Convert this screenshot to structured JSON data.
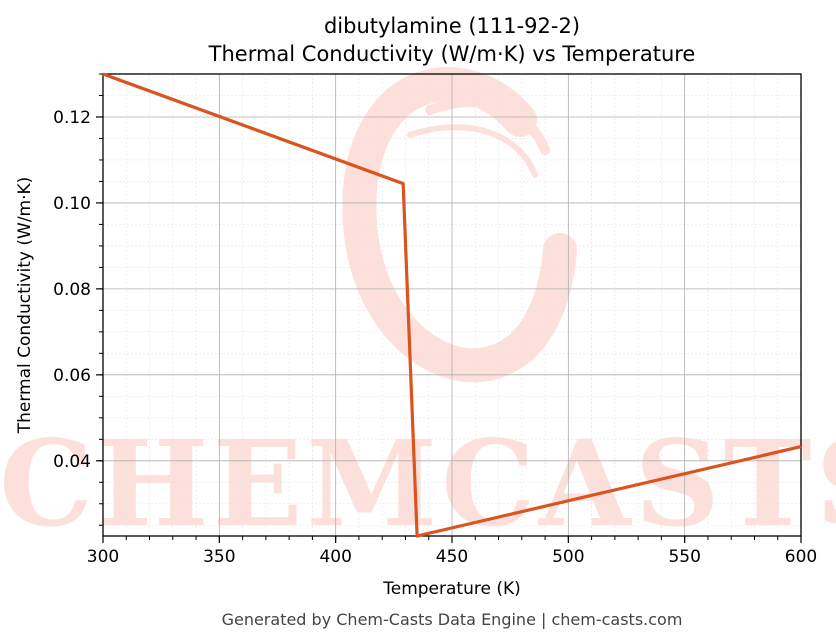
{
  "chart_data": {
    "type": "line",
    "title": "dibutylamine (111-92-2)",
    "subtitle": "Thermal Conductivity (W/m·K) vs Temperature",
    "xlabel": "Temperature (K)",
    "ylabel": "Thermal Conductivity (W/m·K)",
    "xlim": [
      300,
      600
    ],
    "ylim": [
      0.0225,
      0.13
    ],
    "xticks": [
      300,
      350,
      400,
      450,
      500,
      550,
      600
    ],
    "xtick_labels": [
      "300",
      "350",
      "400",
      "450",
      "500",
      "550",
      "600"
    ],
    "yticks": [
      0.04,
      0.06,
      0.08,
      0.1,
      0.12
    ],
    "ytick_labels": [
      "0.04",
      "0.06",
      "0.08",
      "0.10",
      "0.12"
    ],
    "grid": true,
    "series": [
      {
        "color": "#d9541e",
        "x": [
          300,
          429,
          435,
          600
        ],
        "y": [
          0.13,
          0.1045,
          0.0225,
          0.0433
        ]
      }
    ]
  },
  "watermark": {
    "text": "CHEMCASTS",
    "color": "#fde0dc"
  },
  "footer": {
    "text": "Generated by Chem-Casts Data Engine | chem-casts.com"
  }
}
